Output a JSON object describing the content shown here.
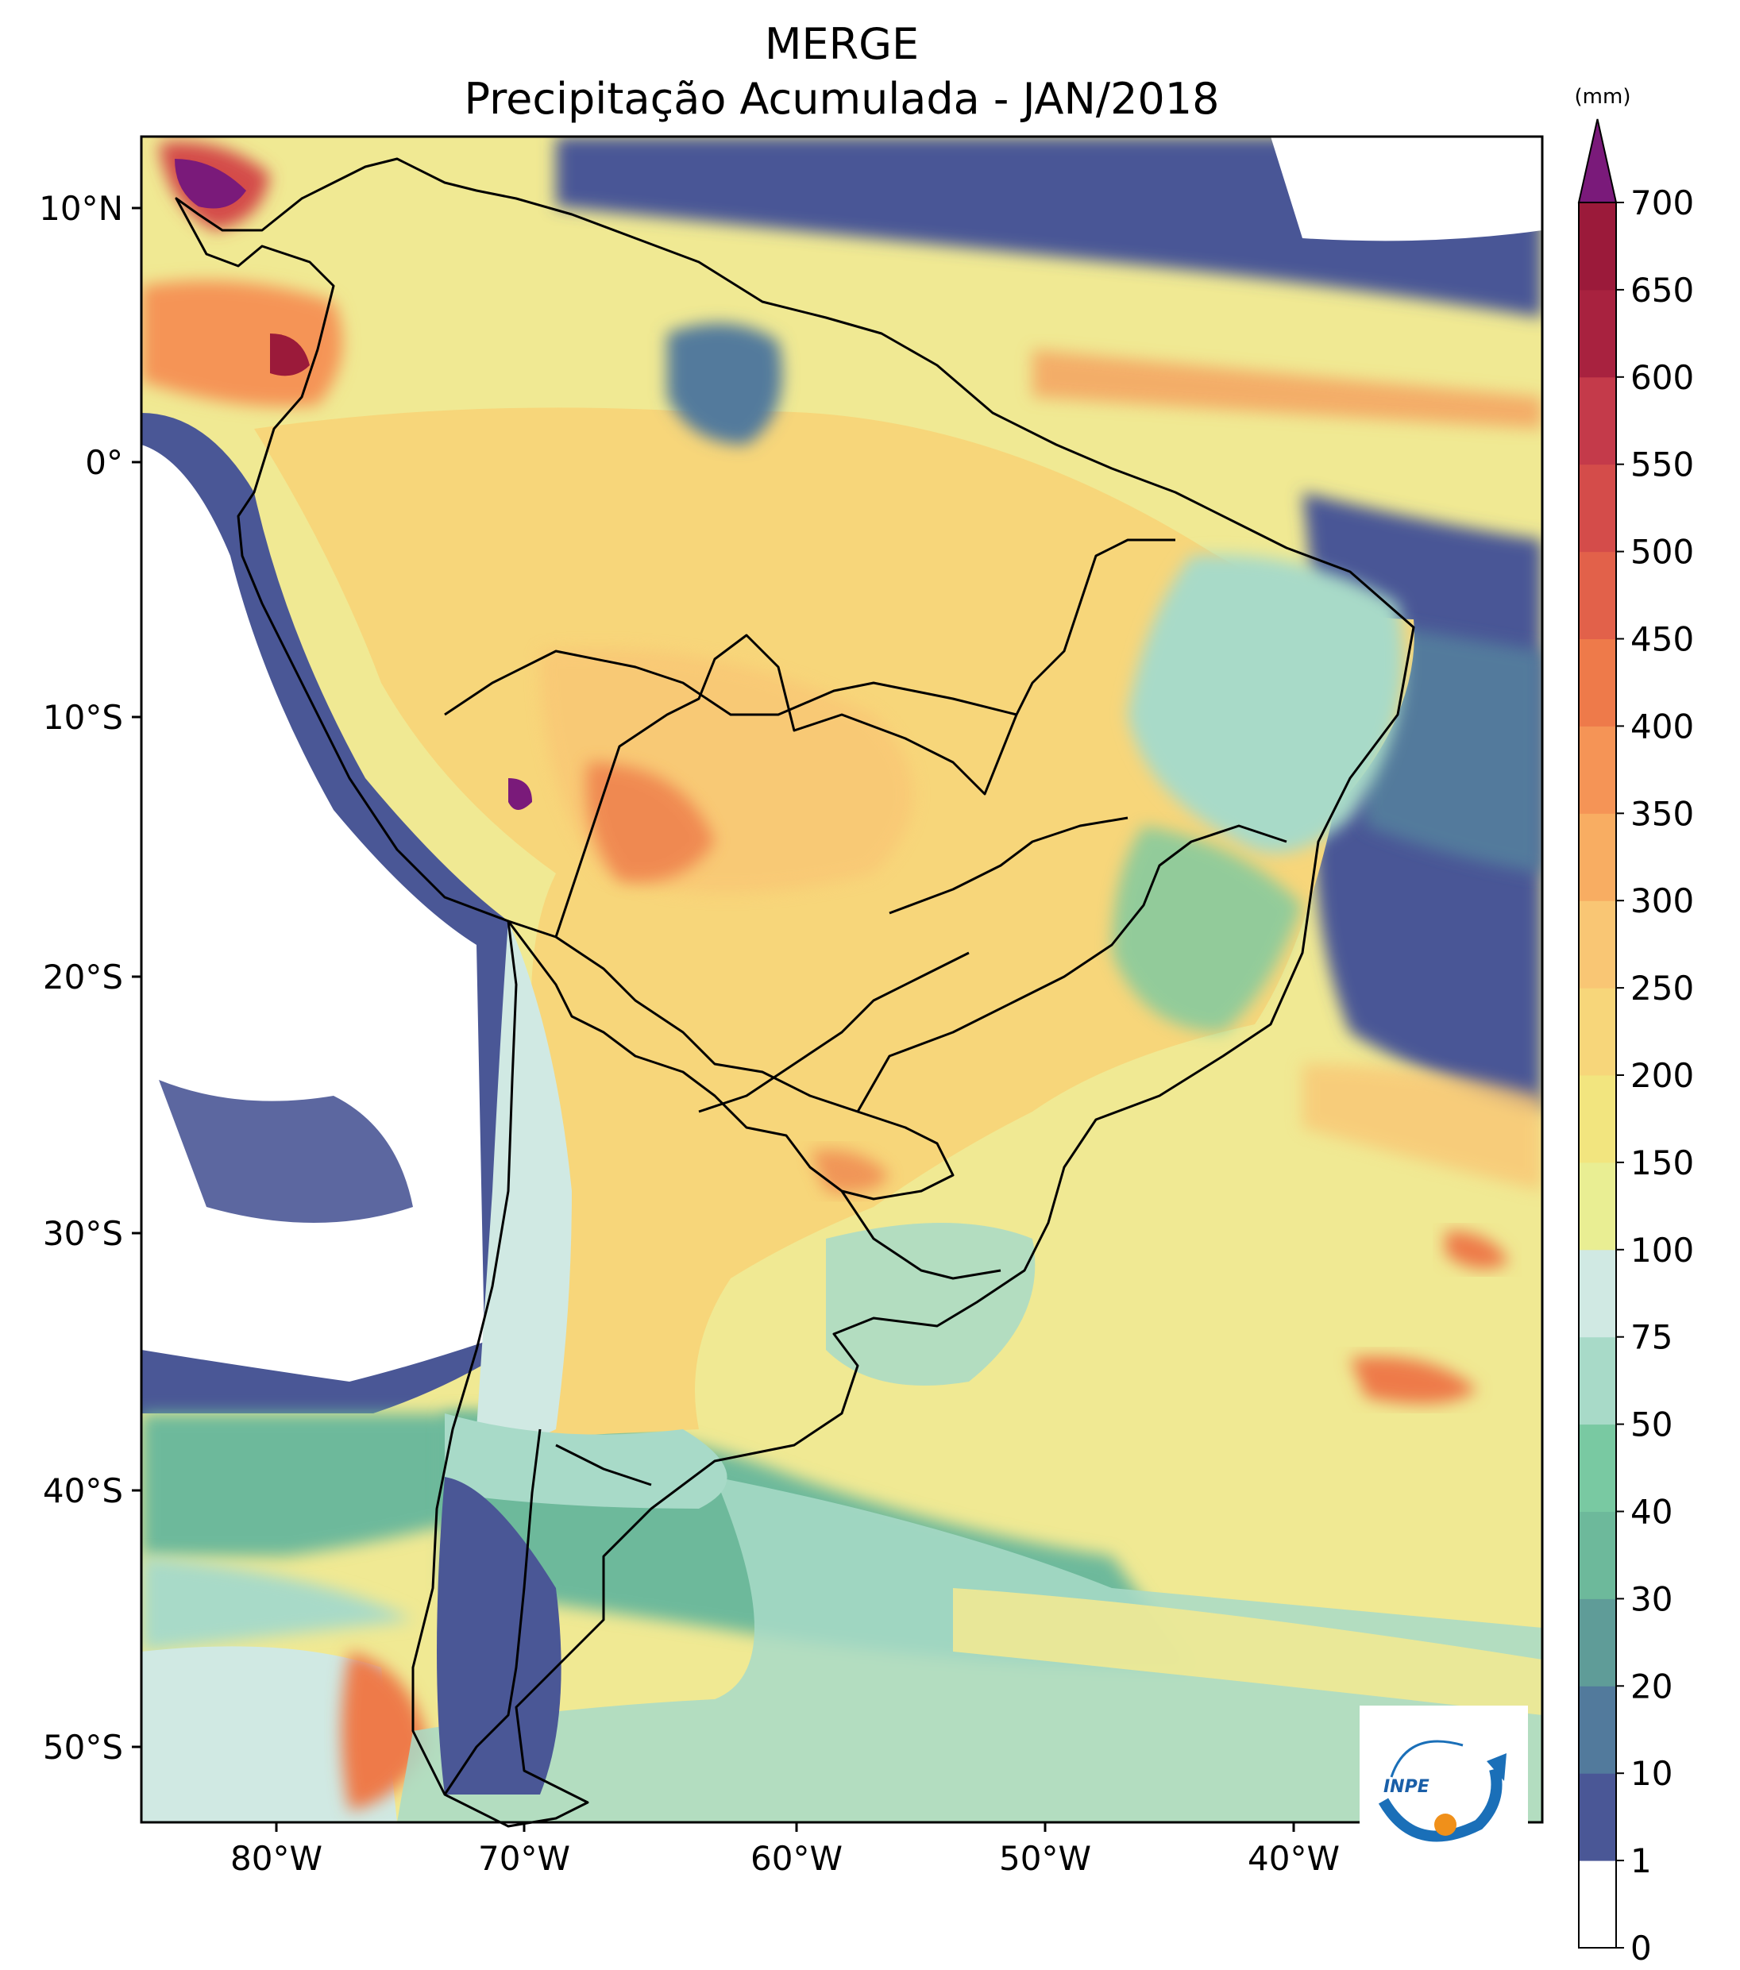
{
  "title": "MERGE",
  "subtitle": "Precipitação Acumulada - JAN/2018",
  "colorbar": {
    "unit": "(mm)",
    "extend": "max",
    "levels": [
      0,
      1,
      10,
      20,
      30,
      40,
      50,
      75,
      100,
      150,
      200,
      250,
      300,
      350,
      400,
      450,
      500,
      550,
      600,
      650,
      700
    ],
    "tick_labels": [
      "0",
      "1",
      "10",
      "20",
      "30",
      "40",
      "50",
      "75",
      "100",
      "150",
      "200",
      "250",
      "300",
      "350",
      "400",
      "450",
      "500",
      "550",
      "600",
      "650",
      "700"
    ],
    "colors": [
      "#ffffff",
      "#4a5796",
      "#527a9c",
      "#5f9c98",
      "#6db99b",
      "#79c9a2",
      "#a8dac8",
      "#d0e9e3",
      "#e9ee93",
      "#f2e57f",
      "#f7d67a",
      "#f9c674",
      "#f8ad62",
      "#f59456",
      "#ee7a4a",
      "#e2614a",
      "#d44c4a",
      "#c43a4a",
      "#a8223f",
      "#9b1a3a"
    ],
    "over_color": "#7a1a7a"
  },
  "axes": {
    "lon_labels": [
      "80°W",
      "70°W",
      "60°W",
      "50°W",
      "40°W"
    ],
    "lat_labels": [
      "10°N",
      "0°",
      "10°S",
      "20°S",
      "30°S",
      "40°S",
      "50°S"
    ]
  },
  "logo": {
    "text": "INPE",
    "colors": [
      "#1a6fb8",
      "#f0901a"
    ]
  }
}
